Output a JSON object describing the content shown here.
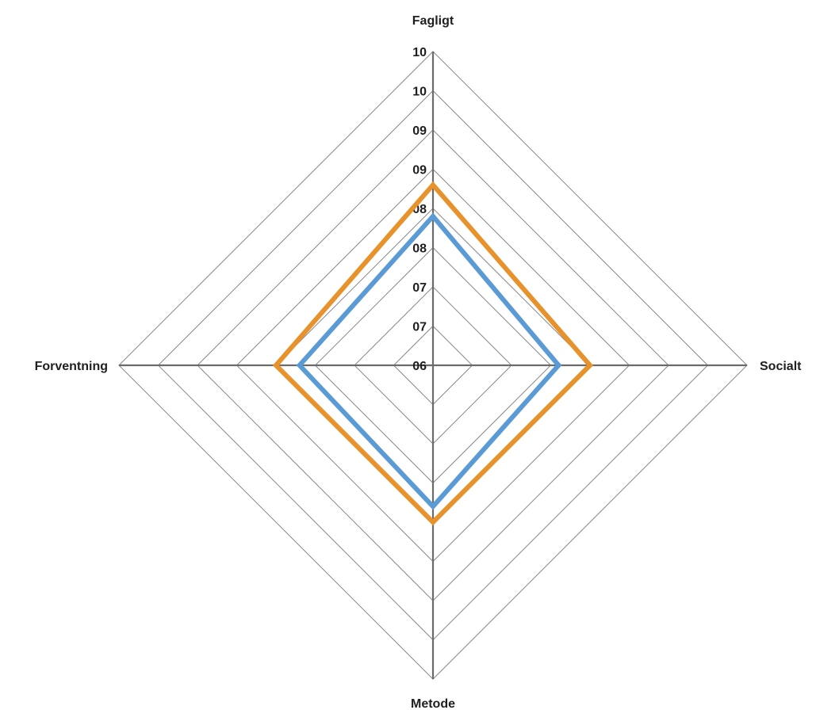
{
  "chart_data": {
    "type": "radar",
    "axes": [
      "Fagligt",
      "Socialt",
      "Metode",
      "Forventning"
    ],
    "tick_labels": [
      "06",
      "07",
      "07",
      "08",
      "08",
      "09",
      "09",
      "10",
      "10"
    ],
    "rlim": [
      6,
      10
    ],
    "ring_count": 8,
    "grid": true,
    "legend": "none",
    "series": [
      {
        "color": "#E8922B",
        "values": [
          8.3,
          8.0,
          8.0,
          8.0
        ]
      },
      {
        "color": "#5B9BD5",
        "values": [
          7.9,
          7.6,
          7.8,
          7.7
        ]
      }
    ]
  }
}
